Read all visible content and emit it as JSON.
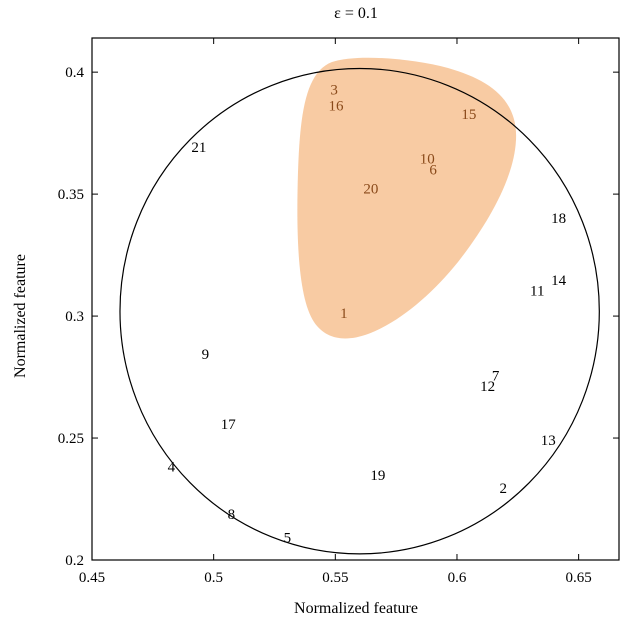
{
  "chart_data": {
    "type": "scatter",
    "title": "ε = 0.1",
    "xlabel": "Normalized feature",
    "ylabel": "Normalized feature",
    "xlim": [
      0.45,
      0.667
    ],
    "ylim": [
      0.2,
      0.414
    ],
    "xticks": [
      0.45,
      0.5,
      0.55,
      0.6,
      0.65
    ],
    "yticks": [
      0.2,
      0.25,
      0.3,
      0.35,
      0.4
    ],
    "xtick_labels": [
      "0.45",
      "0.5",
      "0.55",
      "0.6",
      "0.65"
    ],
    "ytick_labels": [
      "0.2",
      "0.25",
      "0.3",
      "0.35",
      "0.4"
    ],
    "grid": false,
    "circle": {
      "center": [
        0.56,
        0.302
      ],
      "radius_x": 0.0985,
      "radius_y": 0.0995
    },
    "highlight_color": "#f8c89e",
    "highlight_label_color": "#8a4a1a",
    "points": [
      {
        "label": "1",
        "x": 0.5535,
        "y": 0.3013,
        "highlighted": true
      },
      {
        "label": "2",
        "x": 0.619,
        "y": 0.2295,
        "highlighted": false
      },
      {
        "label": "3",
        "x": 0.5495,
        "y": 0.3929,
        "highlighted": true
      },
      {
        "label": "4",
        "x": 0.4826,
        "y": 0.2383,
        "highlighted": false
      },
      {
        "label": "5",
        "x": 0.5303,
        "y": 0.2093,
        "highlighted": false
      },
      {
        "label": "6",
        "x": 0.5902,
        "y": 0.3601,
        "highlighted": true
      },
      {
        "label": "7",
        "x": 0.6159,
        "y": 0.2756,
        "highlighted": false
      },
      {
        "label": "8",
        "x": 0.5073,
        "y": 0.2188,
        "highlighted": false
      },
      {
        "label": "9",
        "x": 0.4966,
        "y": 0.2845,
        "highlighted": false
      },
      {
        "label": "10",
        "x": 0.5878,
        "y": 0.3647,
        "highlighted": true
      },
      {
        "label": "11",
        "x": 0.633,
        "y": 0.3105,
        "highlighted": false
      },
      {
        "label": "12",
        "x": 0.6126,
        "y": 0.2714,
        "highlighted": false
      },
      {
        "label": "13",
        "x": 0.6375,
        "y": 0.2491,
        "highlighted": false
      },
      {
        "label": "14",
        "x": 0.6418,
        "y": 0.3148,
        "highlighted": false
      },
      {
        "label": "15",
        "x": 0.6049,
        "y": 0.3829,
        "highlighted": true
      },
      {
        "label": "16",
        "x": 0.5503,
        "y": 0.3863,
        "highlighted": true
      },
      {
        "label": "17",
        "x": 0.506,
        "y": 0.2557,
        "highlighted": false
      },
      {
        "label": "18",
        "x": 0.6418,
        "y": 0.3403,
        "highlighted": false
      },
      {
        "label": "19",
        "x": 0.5675,
        "y": 0.2349,
        "highlighted": false
      },
      {
        "label": "20",
        "x": 0.5646,
        "y": 0.3524,
        "highlighted": true
      },
      {
        "label": "21",
        "x": 0.4939,
        "y": 0.3694,
        "highlighted": false
      }
    ]
  }
}
